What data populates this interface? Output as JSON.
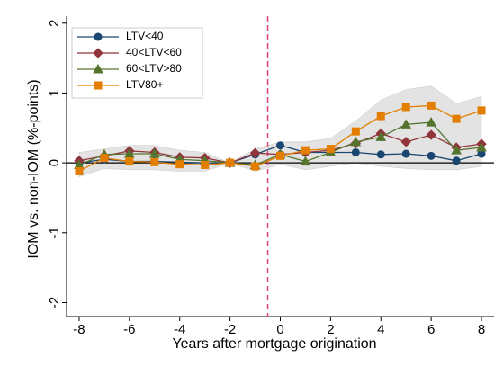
{
  "chart_data": {
    "type": "line",
    "xlabel": "Years after mortgage origination",
    "ylabel": "IOM vs. non-IOM (%-points)",
    "x": [
      -8,
      -7,
      -6,
      -5,
      -4,
      -3,
      -2,
      -1,
      0,
      1,
      2,
      3,
      4,
      5,
      6,
      7,
      8
    ],
    "xlim": [
      -8.5,
      8.5
    ],
    "ylim": [
      -2.2,
      2.1
    ],
    "xticks": [
      -8,
      -6,
      -4,
      -2,
      0,
      2,
      4,
      6,
      8
    ],
    "yticks": [
      -2,
      -1,
      0,
      1,
      2
    ],
    "vline": -0.5,
    "vline_color": "#e0457b",
    "band_color": "#d9d9d9",
    "band_upper": [
      0.15,
      0.2,
      0.25,
      0.25,
      0.18,
      0.15,
      0.0,
      0.2,
      0.3,
      0.3,
      0.35,
      0.6,
      0.9,
      1.05,
      1.1,
      0.85,
      0.95
    ],
    "band_lower": [
      -0.2,
      -0.08,
      -0.1,
      -0.1,
      -0.12,
      -0.12,
      0.0,
      -0.12,
      -0.02,
      -0.1,
      -0.05,
      0.0,
      -0.05,
      -0.08,
      -0.1,
      -0.1,
      -0.05
    ],
    "legend": "top-left",
    "series": [
      {
        "name": "LTV<40",
        "color": "#1a476f",
        "marker": "circle",
        "values": [
          0.0,
          0.05,
          0.02,
          0.02,
          0.01,
          0.0,
          0.0,
          0.12,
          0.25,
          0.15,
          0.15,
          0.15,
          0.12,
          0.13,
          0.1,
          0.03,
          0.13
        ]
      },
      {
        "name": "40<LTV<60",
        "color": "#90353b",
        "marker": "diamond",
        "values": [
          0.03,
          0.1,
          0.17,
          0.15,
          0.08,
          0.07,
          0.0,
          0.14,
          0.12,
          0.15,
          0.18,
          0.28,
          0.42,
          0.3,
          0.4,
          0.22,
          0.27
        ]
      },
      {
        "name": "60<LTV>80",
        "color": "#55752f",
        "marker": "triangle",
        "values": [
          -0.03,
          0.12,
          0.13,
          0.13,
          0.05,
          0.03,
          0.0,
          -0.03,
          0.12,
          0.02,
          0.15,
          0.3,
          0.37,
          0.55,
          0.58,
          0.18,
          0.22
        ]
      },
      {
        "name": "LTV80+",
        "color": "#e37e00",
        "marker": "square",
        "values": [
          -0.12,
          0.07,
          0.02,
          0.01,
          -0.02,
          -0.03,
          0.0,
          -0.05,
          0.1,
          0.18,
          0.2,
          0.45,
          0.67,
          0.8,
          0.82,
          0.63,
          0.75
        ]
      }
    ]
  }
}
